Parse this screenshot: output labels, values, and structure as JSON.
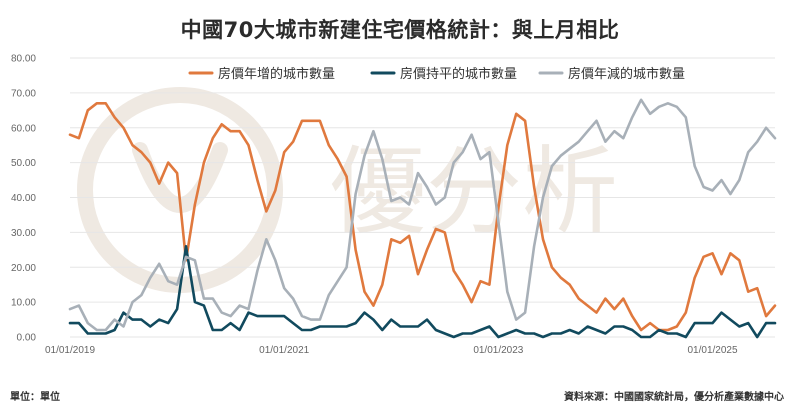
{
  "title": "中國70大城市新建住宅價格統計：與上月相比",
  "watermark": "優分析",
  "footer": {
    "unit": "單位：單位",
    "source": "資料來源：中國國家統計局，優分析產業數據中心"
  },
  "colors": {
    "increase": "#e0793e",
    "flat": "#114a5e",
    "decrease": "#a8b0b8",
    "grid": "#e6e6e6",
    "watermark": "#efe9e2"
  },
  "chart_data": {
    "type": "line",
    "title": "中國70大城市新建住宅價格統計：與上月相比",
    "xlabel": "",
    "ylabel": "",
    "ylim": [
      0,
      80
    ],
    "yticks": [
      "0.00",
      "10.00",
      "20.00",
      "30.00",
      "40.00",
      "50.00",
      "60.00",
      "70.00",
      "80.00"
    ],
    "xticks": [
      "01/01/2019",
      "01/01/2021",
      "01/01/2023",
      "01/01/2025"
    ],
    "x_start": "2019-01",
    "x_end": "2025-08",
    "frequency": "monthly",
    "grid": true,
    "legend_position": "top",
    "series": [
      {
        "name": "房價年增的城市數量",
        "color_key": "increase",
        "values": [
          58,
          57,
          65,
          67,
          67,
          63,
          60,
          55,
          53,
          50,
          44,
          50,
          47,
          22,
          38,
          50,
          57,
          61,
          59,
          59,
          55,
          45,
          36,
          42,
          53,
          56,
          62,
          62,
          62,
          55,
          51,
          46,
          25,
          13,
          9,
          15,
          28,
          27,
          29,
          18,
          25,
          31,
          30,
          19,
          15,
          10,
          16,
          15,
          37,
          55,
          64,
          62,
          43,
          28,
          20,
          17,
          15,
          11,
          9,
          7,
          11,
          8,
          11,
          6,
          2,
          4,
          2,
          2,
          3,
          7,
          17,
          23,
          24,
          18,
          24,
          22,
          13,
          14,
          6,
          9
        ]
      },
      {
        "name": "房價持平的城市數量",
        "color_key": "flat",
        "values": [
          4,
          4,
          1,
          1,
          1,
          2,
          7,
          5,
          5,
          3,
          5,
          4,
          8,
          26,
          10,
          9,
          2,
          2,
          4,
          2,
          7,
          6,
          6,
          6,
          6,
          4,
          2,
          2,
          3,
          3,
          3,
          3,
          4,
          7,
          5,
          2,
          5,
          3,
          3,
          3,
          5,
          2,
          1,
          0,
          1,
          1,
          2,
          3,
          0,
          1,
          2,
          1,
          1,
          0,
          1,
          1,
          2,
          1,
          3,
          2,
          1,
          3,
          3,
          2,
          0,
          0,
          2,
          1,
          1,
          0,
          4,
          4,
          4,
          7,
          5,
          3,
          4,
          0,
          4,
          4
        ]
      },
      {
        "name": "房價年減的城市數量",
        "color_key": "decrease",
        "values": [
          8,
          9,
          4,
          2,
          2,
          5,
          3,
          10,
          12,
          17,
          21,
          16,
          15,
          23,
          22,
          11,
          11,
          7,
          6,
          9,
          8,
          19,
          28,
          22,
          14,
          11,
          6,
          5,
          5,
          12,
          16,
          20,
          41,
          52,
          59,
          51,
          39,
          40,
          38,
          47,
          43,
          38,
          40,
          50,
          53,
          58,
          51,
          53,
          33,
          13,
          5,
          7,
          26,
          40,
          49,
          52,
          54,
          56,
          59,
          62,
          56,
          59,
          57,
          63,
          68,
          64,
          66,
          67,
          66,
          63,
          49,
          43,
          42,
          45,
          41,
          45,
          53,
          56,
          60,
          57
        ]
      }
    ]
  }
}
